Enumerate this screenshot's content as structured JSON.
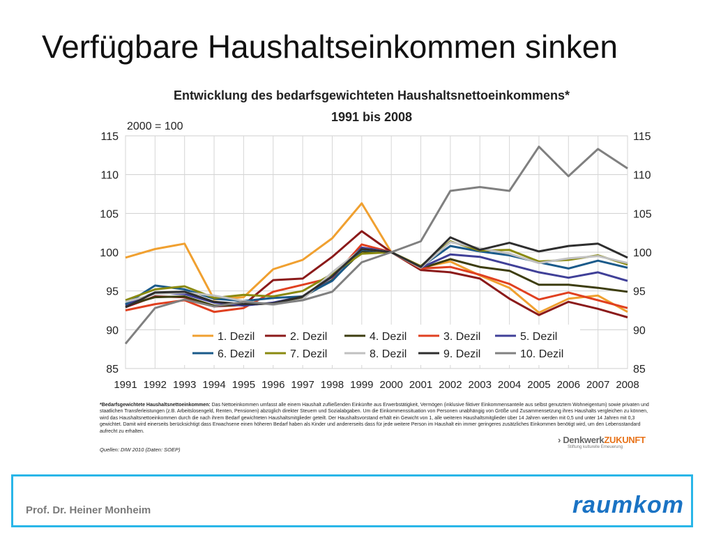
{
  "slide": {
    "title": "Verfügbare Haushaltseinkommen sinken",
    "footnote_bold": "*Bedarfsgewichtete Haushaltsnettoeinkommen:",
    "footnote_text": "Das Nettoeinkommen umfasst alle einem Haushalt zufließenden Einkünfte aus Erwerbstätigkeit, Vermögen (inklusive fiktiver Einkommensanteile aus selbst genutztem Wohneigentum) sowie privaten und staatlichen Transferleistungen (z.B. Arbeitslosengeld, Renten, Pensionen) abzüglich direkter Steuern und Sozialabgaben. Um die Einkommenssituation von Personen unabhängig von Größe und Zusammensetzung ihres Haushalts vergleichen zu können, wird das Haushaltsnettoeinkommen durch die nach ihrem Bedarf gewichteten Haushaltsmitglieder geteilt. Der Haushaltsvorstand erhält ein Gewicht von 1, alle weiteren Haushaltsmitglieder über 14 Jahren werden mit 0,5 und unter 14 Jahren mit 0,3 gewichtet. Damit wird einerseits berücksichtigt dass Erwachsene einen höheren Bedarf haben als Kinder und andererseits dass für jede weitere Person im Haushalt ein immer geringeres zusätzliches Einkommen benötigt wird, um den Lebensstandard aufrecht zu erhalten.",
    "source": "Quellen: DIW 2010 (Daten: SOEP)",
    "brand_prefix": "› Denkwerk",
    "brand_accent": "ZUKUNFT",
    "brand_sub": "Stiftung kulturelle Erneuerung",
    "author": "Prof. Dr. Heiner Monheim",
    "logo": "raumkom"
  },
  "chart_data": {
    "type": "line",
    "title": "Entwicklung des bedarfsgewichteten Haushaltsnettoeinkommens*",
    "subtitle": "1991 bis 2008",
    "index_label": "2000 = 100",
    "ylim": [
      85,
      115
    ],
    "yticks": [
      85,
      90,
      95,
      100,
      105,
      110,
      115
    ],
    "x": [
      1991,
      1992,
      1993,
      1994,
      1995,
      1996,
      1997,
      1998,
      1999,
      2000,
      2001,
      2002,
      2003,
      2004,
      2005,
      2006,
      2007,
      2008
    ],
    "grid": true,
    "legend_position": "inside-bottom",
    "series": [
      {
        "name": "1. Dezil",
        "color": "#f0a030",
        "values": [
          99.3,
          100.4,
          101.1,
          93.9,
          94.2,
          97.8,
          99.0,
          101.8,
          106.3,
          100.0,
          98.0,
          98.8,
          97.0,
          95.4,
          92.2,
          94.0,
          94.4,
          92.3
        ]
      },
      {
        "name": "2. Dezil",
        "color": "#8b1a1a",
        "values": [
          92.9,
          94.3,
          94.2,
          93.0,
          93.2,
          96.4,
          96.6,
          99.4,
          102.7,
          100.0,
          97.7,
          97.4,
          96.6,
          94.0,
          91.9,
          93.6,
          92.7,
          91.6
        ]
      },
      {
        "name": "4. Dezil",
        "color": "#3d3d10",
        "values": [
          93.1,
          94.2,
          94.3,
          93.1,
          93.2,
          93.4,
          94.2,
          96.4,
          100.1,
          100.0,
          97.9,
          99.1,
          98.1,
          97.6,
          95.8,
          95.8,
          95.4,
          94.9
        ]
      },
      {
        "name": "3. Dezil",
        "color": "#e04020",
        "values": [
          92.5,
          93.3,
          93.8,
          92.3,
          92.8,
          94.9,
          95.8,
          96.7,
          101.0,
          100.0,
          97.9,
          98.1,
          97.1,
          95.9,
          93.9,
          94.8,
          93.8,
          92.8
        ]
      },
      {
        "name": "5. Dezil",
        "color": "#404098",
        "values": [
          93.2,
          94.8,
          94.6,
          93.5,
          93.1,
          93.5,
          94.3,
          96.8,
          100.6,
          100.0,
          98.0,
          99.7,
          99.4,
          98.4,
          97.4,
          96.7,
          97.4,
          96.3
        ]
      },
      {
        "name": "6. Dezil",
        "color": "#1a5a8a",
        "values": [
          93.3,
          95.7,
          95.2,
          94.0,
          93.7,
          94.1,
          94.3,
          96.3,
          100.3,
          100.0,
          98.1,
          100.8,
          100.1,
          99.6,
          98.7,
          97.9,
          98.9,
          98.0
        ]
      },
      {
        "name": "7. Dezil",
        "color": "#8a8a10",
        "values": [
          93.8,
          95.2,
          95.6,
          94.1,
          94.5,
          94.3,
          95.0,
          97.2,
          99.8,
          100.0,
          98.2,
          101.4,
          100.2,
          100.3,
          98.8,
          99.0,
          99.6,
          98.4
        ]
      },
      {
        "name": "8. Dezil",
        "color": "#c0c0c0",
        "values": [
          93.6,
          94.6,
          94.8,
          94.4,
          93.7,
          93.2,
          93.9,
          97.4,
          100.4,
          100.0,
          98.0,
          101.3,
          100.5,
          99.8,
          98.6,
          99.2,
          99.5,
          98.6
        ]
      },
      {
        "name": "9. Dezil",
        "color": "#2e2e2e",
        "values": [
          92.9,
          94.8,
          94.9,
          93.6,
          93.3,
          93.4,
          94.3,
          96.9,
          100.4,
          100.0,
          98.1,
          101.9,
          100.3,
          101.2,
          100.1,
          100.8,
          101.1,
          99.3
        ]
      },
      {
        "name": "10. Dezil",
        "color": "#808080",
        "values": [
          88.2,
          92.8,
          93.9,
          93.0,
          93.6,
          93.3,
          93.8,
          94.9,
          98.7,
          100.0,
          101.4,
          107.9,
          108.4,
          107.9,
          113.6,
          109.8,
          113.3,
          110.8
        ]
      }
    ]
  }
}
